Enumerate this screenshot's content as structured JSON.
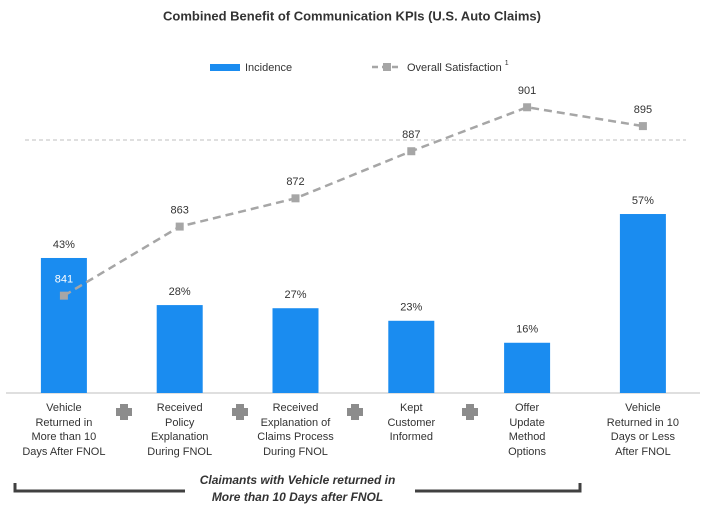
{
  "chart_data": {
    "type": "bar-line",
    "title": "Combined Benefit of Communication KPIs (U.S. Auto Claims)",
    "categories": [
      "Vehicle\nReturned in\nMore than 10\nDays After FNOL",
      "Received\nPolicy\nExplanation\nDuring FNOL",
      "Received\nExplanation of\nClaims Process\nDuring FNOL",
      "Kept\nCustomer\nInformed",
      "Offer\nUpdate\nMethod\nOptions",
      "Vehicle\nReturned in 10\nDays or Less\nAfter FNOL"
    ],
    "series": [
      {
        "name": "Incidence",
        "color": "#1a8cf0",
        "values": [
          43,
          28,
          27,
          23,
          16,
          57
        ],
        "value_labels": [
          "43%",
          "28%",
          "27%",
          "23%",
          "16%",
          "57%"
        ]
      },
      {
        "name": "Overall Satisfaction",
        "footnote": "1",
        "color": "#a6a6a6",
        "axis": "y2",
        "values": [
          841,
          863,
          872,
          887,
          901,
          895
        ]
      }
    ],
    "ylim": [
      0,
      100
    ],
    "y2lim": [
      810,
      910
    ],
    "annotation": "Claimants with Vehicle returned in\nMore than 10 Days after FNOL"
  }
}
